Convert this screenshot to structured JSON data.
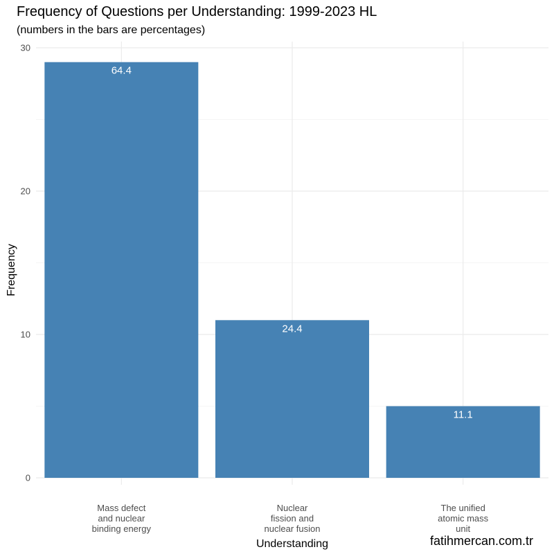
{
  "title": "Frequency of Questions per Understanding: 1999-2023 HL",
  "subtitle": "(numbers in the bars are percentages)",
  "watermark": "fatihmercan.com.tr",
  "colors": {
    "bar": "#4682b4",
    "grid": "#ebebeb",
    "label": "#ffffff"
  },
  "chart_data": {
    "type": "bar",
    "categories": [
      [
        "Mass defect",
        "and nuclear",
        "binding energy"
      ],
      [
        "Nuclear",
        "fission and",
        "nuclear fusion"
      ],
      [
        "The unified",
        "atomic mass",
        "unit"
      ]
    ],
    "values": [
      29,
      11,
      5
    ],
    "bar_labels": [
      "64.4",
      "24.4",
      "11.1"
    ],
    "xlabel": "Understanding",
    "ylabel": "Frequency",
    "ylim": [
      0,
      30
    ],
    "yticks": [
      0,
      10,
      20,
      30
    ],
    "grid": true,
    "legend": "none"
  }
}
